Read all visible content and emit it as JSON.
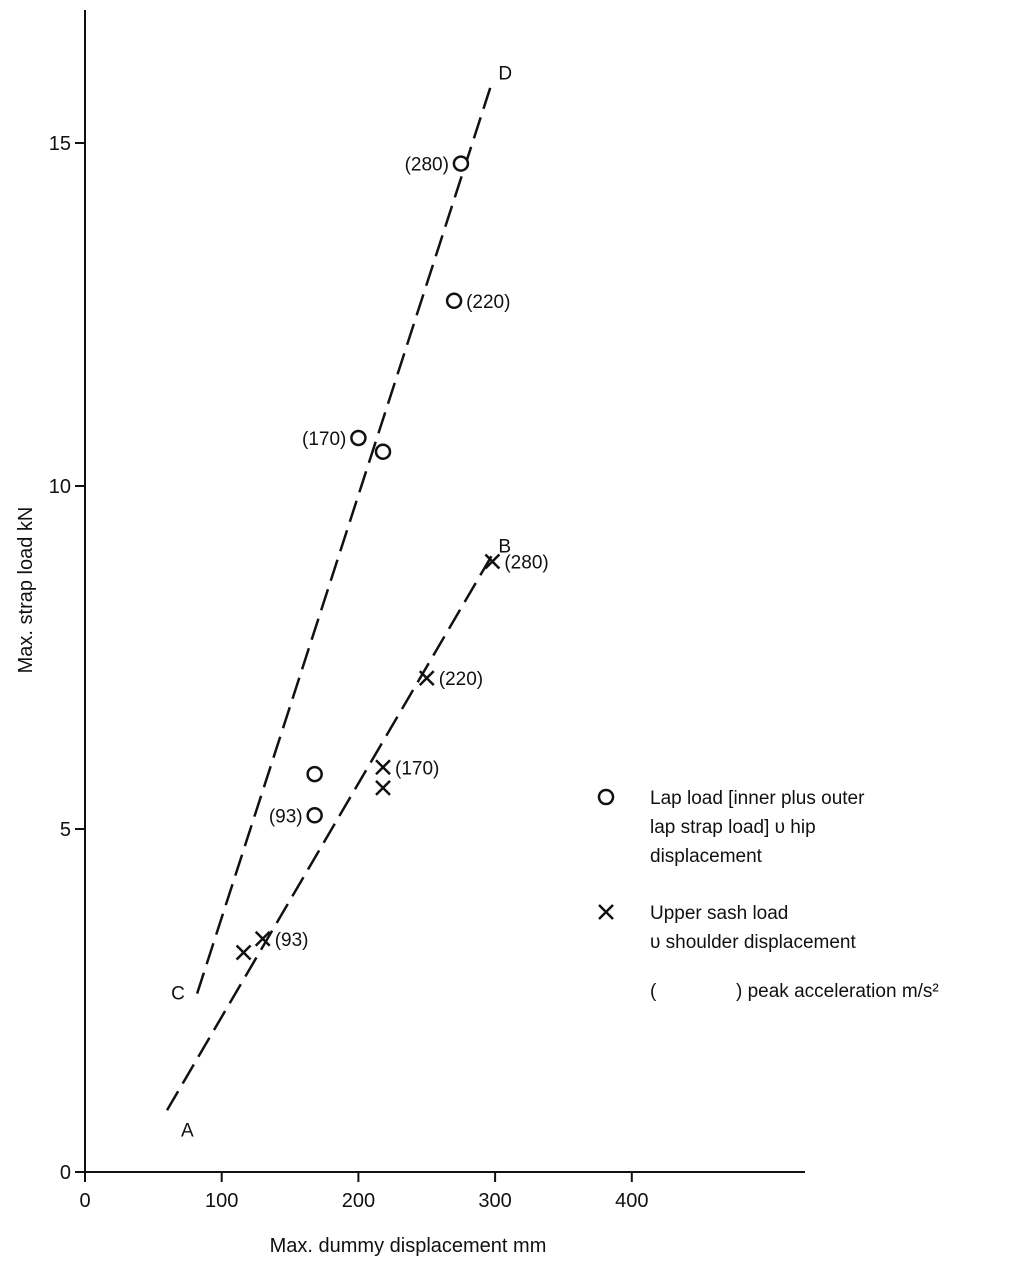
{
  "chart_data": {
    "type": "scatter",
    "xlabel": "Max. dummy displacement mm",
    "ylabel": "Max. strap load kN",
    "xlim": [
      0,
      520
    ],
    "ylim": [
      0,
      17
    ],
    "xticks": [
      0,
      100,
      200,
      300,
      400
    ],
    "yticks": [
      0,
      5,
      10,
      15
    ],
    "grid": false,
    "series": [
      {
        "marker": "circle",
        "points": [
          {
            "x": 275,
            "y": 14.7,
            "label": "(280)",
            "label_side": "left"
          },
          {
            "x": 270,
            "y": 12.7,
            "label": "(220)",
            "label_side": "right"
          },
          {
            "x": 200,
            "y": 10.7,
            "label": "(170)",
            "label_side": "left"
          },
          {
            "x": 218,
            "y": 10.5,
            "label": "",
            "label_side": "none"
          },
          {
            "x": 168,
            "y": 5.8,
            "label": "",
            "label_side": "none"
          },
          {
            "x": 168,
            "y": 5.2,
            "label": "(93)",
            "label_side": "left"
          }
        ]
      },
      {
        "marker": "cross",
        "points": [
          {
            "x": 298,
            "y": 8.9,
            "label": "(280)",
            "label_side": "right"
          },
          {
            "x": 250,
            "y": 7.2,
            "label": "(220)",
            "label_side": "right"
          },
          {
            "x": 218,
            "y": 5.9,
            "label": "(170)",
            "label_side": "right"
          },
          {
            "x": 218,
            "y": 5.6,
            "label": "",
            "label_side": "none"
          },
          {
            "x": 130,
            "y": 3.4,
            "label": "(93)",
            "label_side": "right"
          },
          {
            "x": 116,
            "y": 3.2,
            "label": "",
            "label_side": "none"
          }
        ]
      }
    ],
    "fit_lines": [
      {
        "name": "C-D",
        "start": {
          "x": 82,
          "y": 2.6,
          "label": "C"
        },
        "end": {
          "x": 298,
          "y": 15.9,
          "label": "D"
        },
        "style": "dashed"
      },
      {
        "name": "A-B",
        "start": {
          "x": 60,
          "y": 0.9,
          "label": "A"
        },
        "end": {
          "x": 298,
          "y": 9.0,
          "label": "B"
        },
        "style": "dashed"
      }
    ],
    "legend": {
      "placement": "right",
      "entries": [
        {
          "marker": "circle",
          "lines": [
            "Lap load [inner plus outer",
            "lap strap load] υ hip",
            "displacement"
          ]
        },
        {
          "marker": "cross",
          "lines": [
            "Upper sash load",
            "υ shoulder displacement"
          ]
        },
        {
          "marker": "none",
          "lines": [
            "(",
            ") peak acceleration m/s²"
          ]
        }
      ]
    }
  }
}
